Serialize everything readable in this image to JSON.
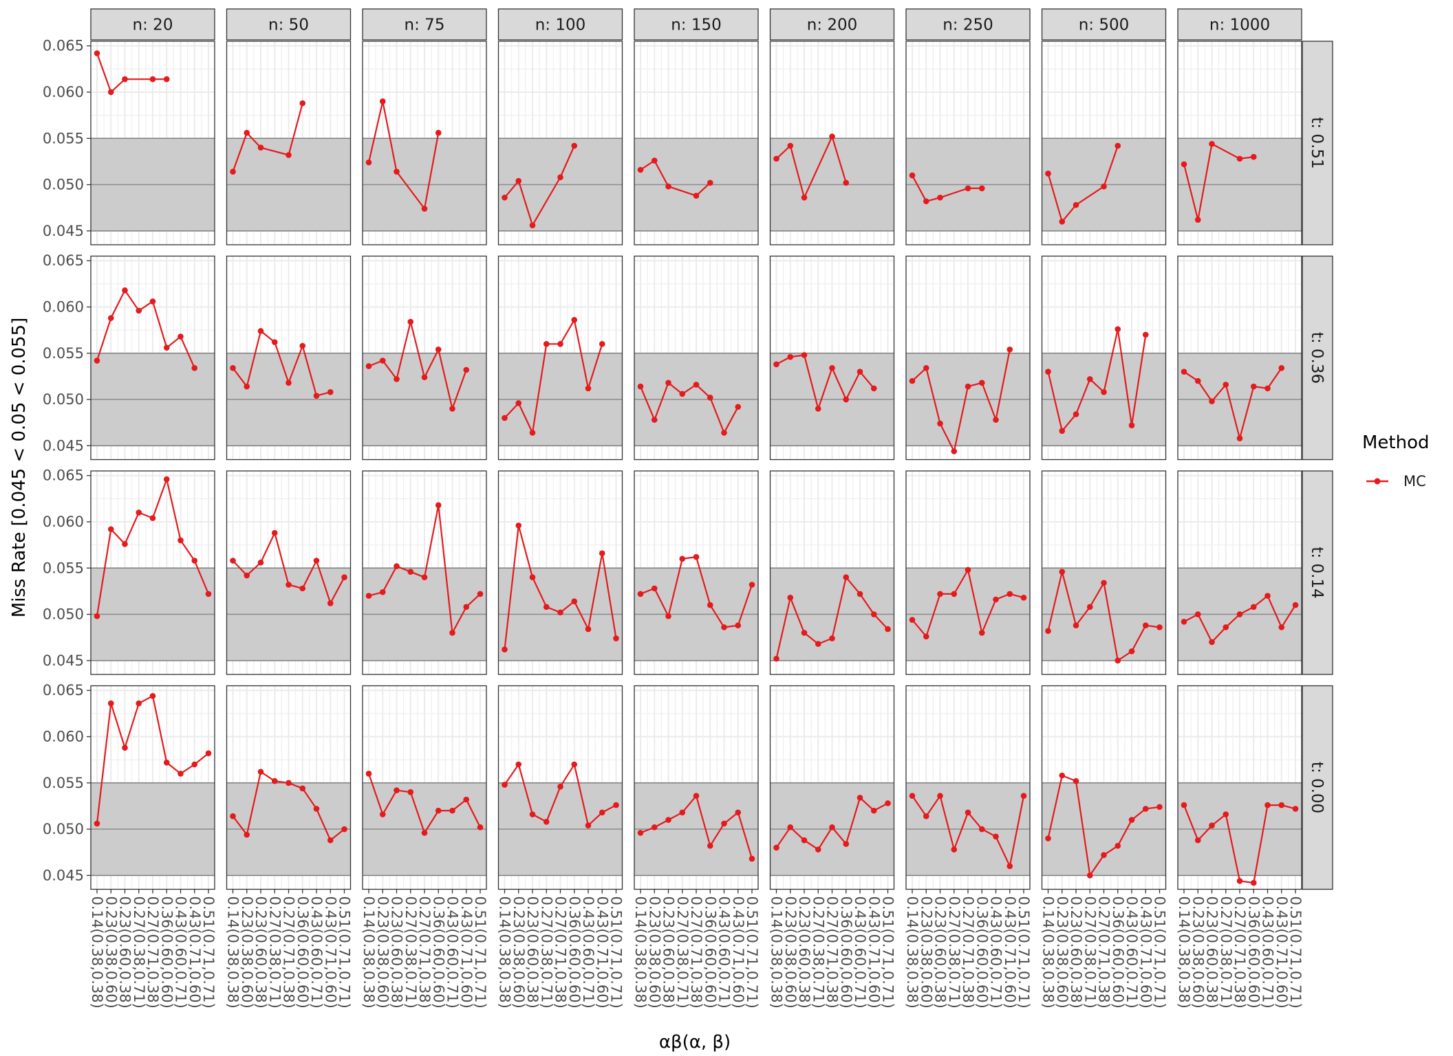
{
  "chart_data": {
    "type": "line",
    "ylabel": "Miss Rate [0.045 < 0.05 < 0.055]",
    "xlabel": "αβ(α, β)",
    "ylim": [
      0.0435,
      0.0655
    ],
    "y_ticks": [
      "0.045",
      "0.050",
      "0.055",
      "0.060",
      "0.065"
    ],
    "y_tick_values": [
      0.045,
      0.05,
      0.055,
      0.06,
      0.065
    ],
    "x_categories": [
      "0.14(0.38,0.38)",
      "0.23(0.38,0.60)",
      "0.23(0.60,0.38)",
      "0.27(0.38,0.71)",
      "0.27(0.71,0.38)",
      "0.36(0.60,0.60)",
      "0.43(0.60,0.71)",
      "0.43(0.71,0.60)",
      "0.51(0.71,0.71)"
    ],
    "acceptance_band": [
      0.045,
      0.055
    ],
    "reference_line": 0.05,
    "grid": true,
    "colors": {
      "series": "#e41a1c",
      "band": "#cccccc",
      "strip": "#d9d9d9",
      "grid": "#ebebeb",
      "panel_border": "#333333"
    },
    "col_facets": [
      "n: 20",
      "n: 50",
      "n: 75",
      "n: 100",
      "n: 150",
      "n: 200",
      "n: 250",
      "n: 500",
      "n: 1000"
    ],
    "row_facets": [
      "t: 0.51",
      "t: 0.36",
      "t: 0.14",
      "t: 0.00"
    ],
    "legend": {
      "title": "Method",
      "entries": [
        "MC"
      ],
      "position": "right"
    },
    "panels": [
      [
        [
          0.0642,
          0.06,
          0.0614,
          null,
          0.0614,
          0.0614,
          null,
          null,
          null
        ],
        [
          0.0514,
          0.0556,
          0.054,
          null,
          0.0532,
          0.0588,
          null,
          null,
          null
        ],
        [
          0.0524,
          0.059,
          0.0514,
          null,
          0.0474,
          0.0556,
          null,
          null,
          null
        ],
        [
          0.0486,
          0.0504,
          0.0456,
          null,
          0.0508,
          0.0542,
          null,
          null,
          null
        ],
        [
          0.0516,
          0.0526,
          0.0498,
          null,
          0.0488,
          0.0502,
          null,
          null,
          null
        ],
        [
          0.0528,
          0.0542,
          0.0486,
          null,
          0.0552,
          0.0502,
          null,
          null,
          null
        ],
        [
          0.051,
          0.0482,
          0.0486,
          null,
          0.0496,
          0.0496,
          null,
          null,
          null
        ],
        [
          0.0512,
          0.046,
          0.0478,
          null,
          0.0498,
          0.0542,
          null,
          null,
          null
        ],
        [
          0.0522,
          0.0462,
          0.0544,
          null,
          0.0528,
          0.053,
          null,
          null,
          null
        ]
      ],
      [
        [
          0.0542,
          0.0588,
          0.0618,
          0.0596,
          0.0606,
          0.0556,
          0.0568,
          0.0534,
          null
        ],
        [
          0.0534,
          0.0514,
          0.0574,
          0.0562,
          0.0518,
          0.0558,
          0.0504,
          0.0508,
          null
        ],
        [
          0.0536,
          0.0542,
          0.0522,
          0.0584,
          0.0524,
          0.0554,
          0.049,
          0.0532,
          null
        ],
        [
          0.048,
          0.0496,
          0.0464,
          0.056,
          0.056,
          0.0586,
          0.0512,
          0.056,
          null
        ],
        [
          0.0514,
          0.0478,
          0.0518,
          0.0506,
          0.0516,
          0.0502,
          0.0464,
          0.0492,
          null
        ],
        [
          0.0538,
          0.0546,
          0.0548,
          0.049,
          0.0534,
          0.05,
          0.053,
          0.0512,
          null
        ],
        [
          0.052,
          0.0534,
          0.0474,
          0.0444,
          0.0514,
          0.0518,
          0.0478,
          0.0554,
          null
        ],
        [
          0.053,
          0.0466,
          0.0484,
          0.0522,
          0.0508,
          0.0576,
          0.0472,
          0.057,
          null
        ],
        [
          0.053,
          0.052,
          0.0498,
          0.0516,
          0.0458,
          0.0514,
          0.0512,
          0.0534,
          null
        ]
      ],
      [
        [
          0.0498,
          0.0592,
          0.0576,
          0.061,
          0.0604,
          0.0646,
          0.058,
          0.0558,
          0.0522
        ],
        [
          0.0558,
          0.0542,
          0.0556,
          0.0588,
          0.0532,
          0.0528,
          0.0558,
          0.0512,
          0.054
        ],
        [
          0.052,
          0.0524,
          0.0552,
          0.0546,
          0.054,
          0.0618,
          0.048,
          0.0508,
          0.0522
        ],
        [
          0.0462,
          0.0596,
          0.054,
          0.0508,
          0.0502,
          0.0514,
          0.0484,
          0.0566,
          0.0474
        ],
        [
          0.0522,
          0.0528,
          0.0498,
          0.056,
          0.0562,
          0.051,
          0.0486,
          0.0488,
          0.0532
        ],
        [
          0.0452,
          0.0518,
          0.048,
          0.0468,
          0.0474,
          0.054,
          0.0522,
          0.05,
          0.0484
        ],
        [
          0.0494,
          0.0476,
          0.0522,
          0.0522,
          0.0548,
          0.048,
          0.0516,
          0.0522,
          0.0518
        ],
        [
          0.0482,
          0.0546,
          0.0488,
          0.0508,
          0.0534,
          0.045,
          0.046,
          0.0488,
          0.0486
        ],
        [
          0.0492,
          0.05,
          0.047,
          0.0486,
          0.05,
          0.0508,
          0.052,
          0.0486,
          0.051
        ]
      ],
      [
        [
          0.0506,
          0.0636,
          0.0588,
          0.0636,
          0.0644,
          0.0572,
          0.056,
          0.057,
          0.0582
        ],
        [
          0.0514,
          0.0494,
          0.0562,
          0.0552,
          0.055,
          0.0544,
          0.0522,
          0.0488,
          0.05
        ],
        [
          0.056,
          0.0516,
          0.0542,
          0.054,
          0.0496,
          0.052,
          0.052,
          0.0532,
          0.0502
        ],
        [
          0.0548,
          0.057,
          0.0516,
          0.0508,
          0.0546,
          0.057,
          0.0504,
          0.0518,
          0.0526
        ],
        [
          0.0496,
          0.0502,
          0.051,
          0.0518,
          0.0536,
          0.0482,
          0.0506,
          0.0518,
          0.0468
        ],
        [
          0.048,
          0.0502,
          0.0488,
          0.0478,
          0.0502,
          0.0484,
          0.0534,
          0.052,
          0.0528
        ],
        [
          0.0536,
          0.0514,
          0.0536,
          0.0478,
          0.0518,
          0.05,
          0.0492,
          0.046,
          0.0536
        ],
        [
          0.049,
          0.0558,
          0.0552,
          0.045,
          0.0472,
          0.0482,
          0.051,
          0.0522,
          0.0524
        ],
        [
          0.0526,
          0.0488,
          0.0504,
          0.0516,
          0.0444,
          0.0442,
          0.0526,
          0.0526,
          0.0522
        ]
      ]
    ]
  }
}
